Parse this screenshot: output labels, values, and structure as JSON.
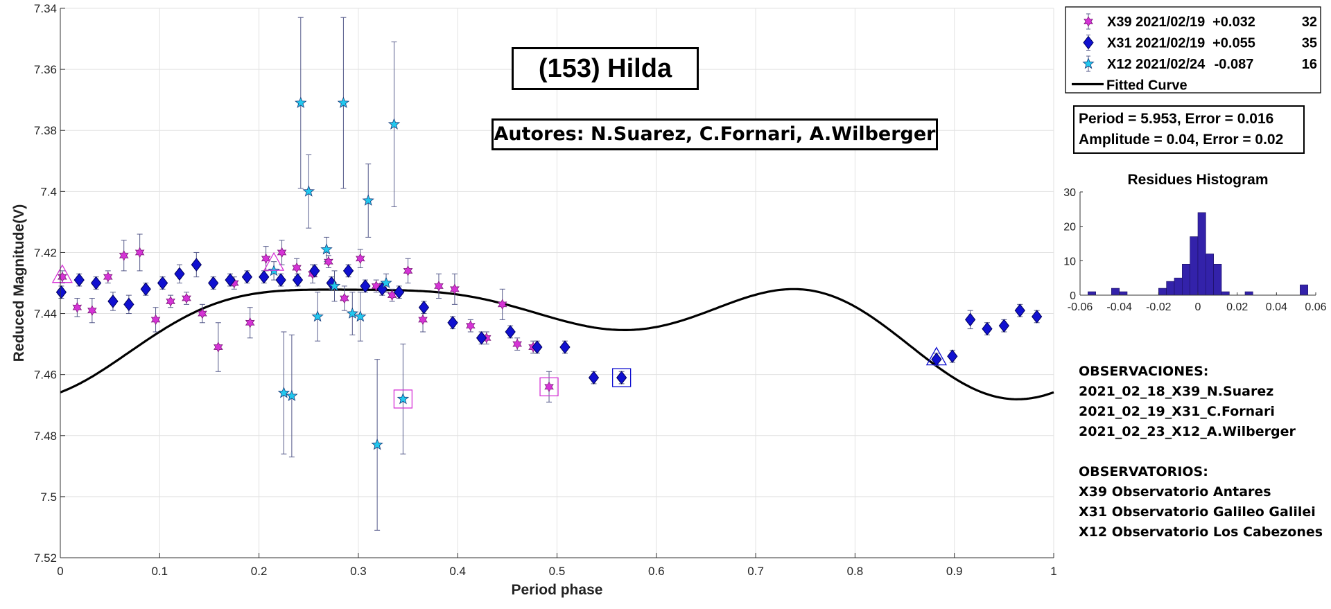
{
  "title": "(153) Hilda",
  "authors": "Autores: N.Suarez, C.Fornari, A.Wilberger",
  "fit_info": {
    "period_line": "Period =  5.953, Error = 0.016",
    "amplitude_line": "Amplitude = 0.04, Error = 0.02"
  },
  "legend": [
    {
      "label": "X39 2021/02/19",
      "offset": "+0.032",
      "count": "32",
      "marker": "hexagram",
      "color": "#d633d6"
    },
    {
      "label": "X31 2021/02/19",
      "offset": "+0.055",
      "count": "35",
      "marker": "diamond",
      "color": "#1010d0"
    },
    {
      "label": "X12 2021/02/24",
      "offset": "-0.087",
      "count": "16",
      "marker": "pentagram",
      "color": "#22c8ee"
    },
    {
      "label": "Fitted Curve",
      "marker": "line",
      "color": "#000000"
    }
  ],
  "notes": {
    "obs_heading": "OBSERVACIONES:",
    "obs": [
      "2021_02_18_X39_N.Suarez",
      "2021_02_19_X31_C.Fornari",
      "2021_02_23_X12_A.Wilberger"
    ],
    "obsv_heading": "OBSERVATORIOS:",
    "obsv": [
      "X39 Observatorio Antares",
      "X31 Observatorio Galileo Galilei",
      "X12 Observatorio Los Cabezones"
    ]
  },
  "chart_data": [
    {
      "type": "scatter",
      "title": "",
      "xlabel": "Period phase",
      "ylabel": "Reduced Magnitude(V)",
      "xlim": [
        0,
        1
      ],
      "ylim": [
        7.34,
        7.52
      ],
      "y_reversed": true,
      "grid": true,
      "xticks": [
        "0",
        "0.1",
        "0.2",
        "0.3",
        "0.4",
        "0.5",
        "0.6",
        "0.7",
        "0.8",
        "0.9",
        "1"
      ],
      "yticks": [
        "7.34",
        "7.36",
        "7.38",
        "7.4",
        "7.42",
        "7.44",
        "7.46",
        "7.48",
        "7.5",
        "7.52"
      ],
      "series": [
        {
          "name": "X39 2021/02/19",
          "marker": "hexagram",
          "color": "#d633d6",
          "points": [
            [
              0.002,
              7.428,
              0.002
            ],
            [
              0.017,
              7.438,
              0.003
            ],
            [
              0.032,
              7.439,
              0.004
            ],
            [
              0.048,
              7.428,
              0.002
            ],
            [
              0.064,
              7.421,
              0.005
            ],
            [
              0.08,
              7.42,
              0.006
            ],
            [
              0.096,
              7.442,
              0.004
            ],
            [
              0.111,
              7.436,
              0.002
            ],
            [
              0.127,
              7.435,
              0.002
            ],
            [
              0.143,
              7.44,
              0.003
            ],
            [
              0.159,
              7.451,
              0.008
            ],
            [
              0.175,
              7.43,
              0.002
            ],
            [
              0.191,
              7.443,
              0.005
            ],
            [
              0.207,
              7.422,
              0.004
            ],
            [
              0.223,
              7.42,
              0.004
            ],
            [
              0.238,
              7.425,
              0.003
            ],
            [
              0.254,
              7.427,
              0.003
            ],
            [
              0.27,
              7.423,
              0.002
            ],
            [
              0.286,
              7.435,
              0.004
            ],
            [
              0.302,
              7.422,
              0.003
            ],
            [
              0.318,
              7.431,
              0.002
            ],
            [
              0.334,
              7.434,
              0.002
            ],
            [
              0.35,
              7.426,
              0.004
            ],
            [
              0.365,
              7.442,
              0.004
            ],
            [
              0.381,
              7.431,
              0.004
            ],
            [
              0.397,
              7.432,
              0.005
            ],
            [
              0.413,
              7.444,
              0.002
            ],
            [
              0.429,
              7.448,
              0.002
            ],
            [
              0.445,
              7.437,
              0.005
            ],
            [
              0.46,
              7.45,
              0.002
            ],
            [
              0.476,
              7.451,
              0.002
            ],
            [
              0.492,
              7.464,
              0.005
            ]
          ]
        },
        {
          "name": "X31 2021/02/19",
          "marker": "diamond",
          "color": "#1010d0",
          "points": [
            [
              0.001,
              7.433,
              0.002
            ],
            [
              0.019,
              7.429,
              0.002
            ],
            [
              0.036,
              7.43,
              0.002
            ],
            [
              0.053,
              7.436,
              0.003
            ],
            [
              0.069,
              7.437,
              0.003
            ],
            [
              0.086,
              7.432,
              0.002
            ],
            [
              0.103,
              7.43,
              0.002
            ],
            [
              0.12,
              7.427,
              0.003
            ],
            [
              0.137,
              7.424,
              0.004
            ],
            [
              0.154,
              7.43,
              0.002
            ],
            [
              0.171,
              7.429,
              0.002
            ],
            [
              0.188,
              7.428,
              0.002
            ],
            [
              0.205,
              7.428,
              0.002
            ],
            [
              0.222,
              7.429,
              0.002
            ],
            [
              0.239,
              7.429,
              0.002
            ],
            [
              0.256,
              7.426,
              0.002
            ],
            [
              0.273,
              7.43,
              0.002
            ],
            [
              0.29,
              7.426,
              0.002
            ],
            [
              0.307,
              7.431,
              0.002
            ],
            [
              0.324,
              7.432,
              0.002
            ],
            [
              0.341,
              7.433,
              0.002
            ],
            [
              0.366,
              7.438,
              0.002
            ],
            [
              0.395,
              7.443,
              0.002
            ],
            [
              0.424,
              7.448,
              0.002
            ],
            [
              0.453,
              7.446,
              0.002
            ],
            [
              0.48,
              7.451,
              0.002
            ],
            [
              0.508,
              7.451,
              0.002
            ],
            [
              0.537,
              7.461,
              0.002
            ],
            [
              0.565,
              7.461,
              0.002
            ],
            [
              0.882,
              7.455,
              0.002
            ],
            [
              0.898,
              7.454,
              0.002
            ],
            [
              0.916,
              7.442,
              0.003
            ],
            [
              0.933,
              7.445,
              0.002
            ],
            [
              0.95,
              7.444,
              0.002
            ],
            [
              0.966,
              7.439,
              0.002
            ],
            [
              0.983,
              7.441,
              0.002
            ]
          ]
        },
        {
          "name": "X12 2021/02/24",
          "marker": "pentagram",
          "color": "#22c8ee",
          "points": [
            [
              0.215,
              7.426,
              0.003
            ],
            [
              0.225,
              7.466,
              0.02
            ],
            [
              0.233,
              7.467,
              0.02
            ],
            [
              0.242,
              7.371,
              0.028
            ],
            [
              0.25,
              7.4,
              0.012
            ],
            [
              0.259,
              7.441,
              0.008
            ],
            [
              0.268,
              7.419,
              0.004
            ],
            [
              0.276,
              7.431,
              0.005
            ],
            [
              0.285,
              7.371,
              0.028
            ],
            [
              0.294,
              7.44,
              0.007
            ],
            [
              0.302,
              7.441,
              0.008
            ],
            [
              0.31,
              7.403,
              0.012
            ],
            [
              0.319,
              7.483,
              0.028
            ],
            [
              0.328,
              7.43,
              0.003
            ],
            [
              0.336,
              7.378,
              0.027
            ],
            [
              0.345,
              7.468,
              0.018
            ]
          ]
        }
      ],
      "fitted_curve": {
        "name": "Fitted Curve",
        "mean": 7.443,
        "harmonics": [
          {
            "k": 1,
            "a": 0.0098,
            "b": -0.0042
          },
          {
            "k": 2,
            "a": 0.0108,
            "b": -0.0012
          },
          {
            "k": 3,
            "a": 0.0022,
            "b": -0.0042
          }
        ]
      },
      "highlighted": [
        {
          "shape": "triangle",
          "color": "#d633d6",
          "x": 0.002,
          "y": 7.428
        },
        {
          "shape": "triangle",
          "color": "#d633d6",
          "x": 0.215,
          "y": 7.424
        },
        {
          "shape": "triangle",
          "color": "#1010d0",
          "x": 0.882,
          "y": 7.455
        },
        {
          "shape": "square",
          "color": "#d633d6",
          "x": 0.345,
          "y": 7.468
        },
        {
          "shape": "square",
          "color": "#d633d6",
          "x": 0.492,
          "y": 7.464
        },
        {
          "shape": "square",
          "color": "#1010d0",
          "x": 0.565,
          "y": 7.461
        }
      ]
    },
    {
      "type": "bar",
      "title": "Residues Histogram",
      "xlim": [
        -0.06,
        0.06
      ],
      "ylim": [
        0,
        30
      ],
      "xticks": [
        "-0.06",
        "-0.04",
        "-0.02",
        "0",
        "0.02",
        "0.04",
        "0.06"
      ],
      "yticks": [
        "0",
        "10",
        "20",
        "30"
      ],
      "bin_width": 0.004,
      "color": "#3322aa",
      "bins": [
        {
          "x": -0.054,
          "count": 1
        },
        {
          "x": -0.042,
          "count": 2
        },
        {
          "x": -0.038,
          "count": 1
        },
        {
          "x": -0.018,
          "count": 2
        },
        {
          "x": -0.014,
          "count": 4
        },
        {
          "x": -0.01,
          "count": 5
        },
        {
          "x": -0.006,
          "count": 9
        },
        {
          "x": -0.002,
          "count": 17
        },
        {
          "x": 0.002,
          "count": 24
        },
        {
          "x": 0.006,
          "count": 12
        },
        {
          "x": 0.01,
          "count": 9
        },
        {
          "x": 0.014,
          "count": 1
        },
        {
          "x": 0.026,
          "count": 1
        },
        {
          "x": 0.054,
          "count": 3
        }
      ]
    }
  ]
}
